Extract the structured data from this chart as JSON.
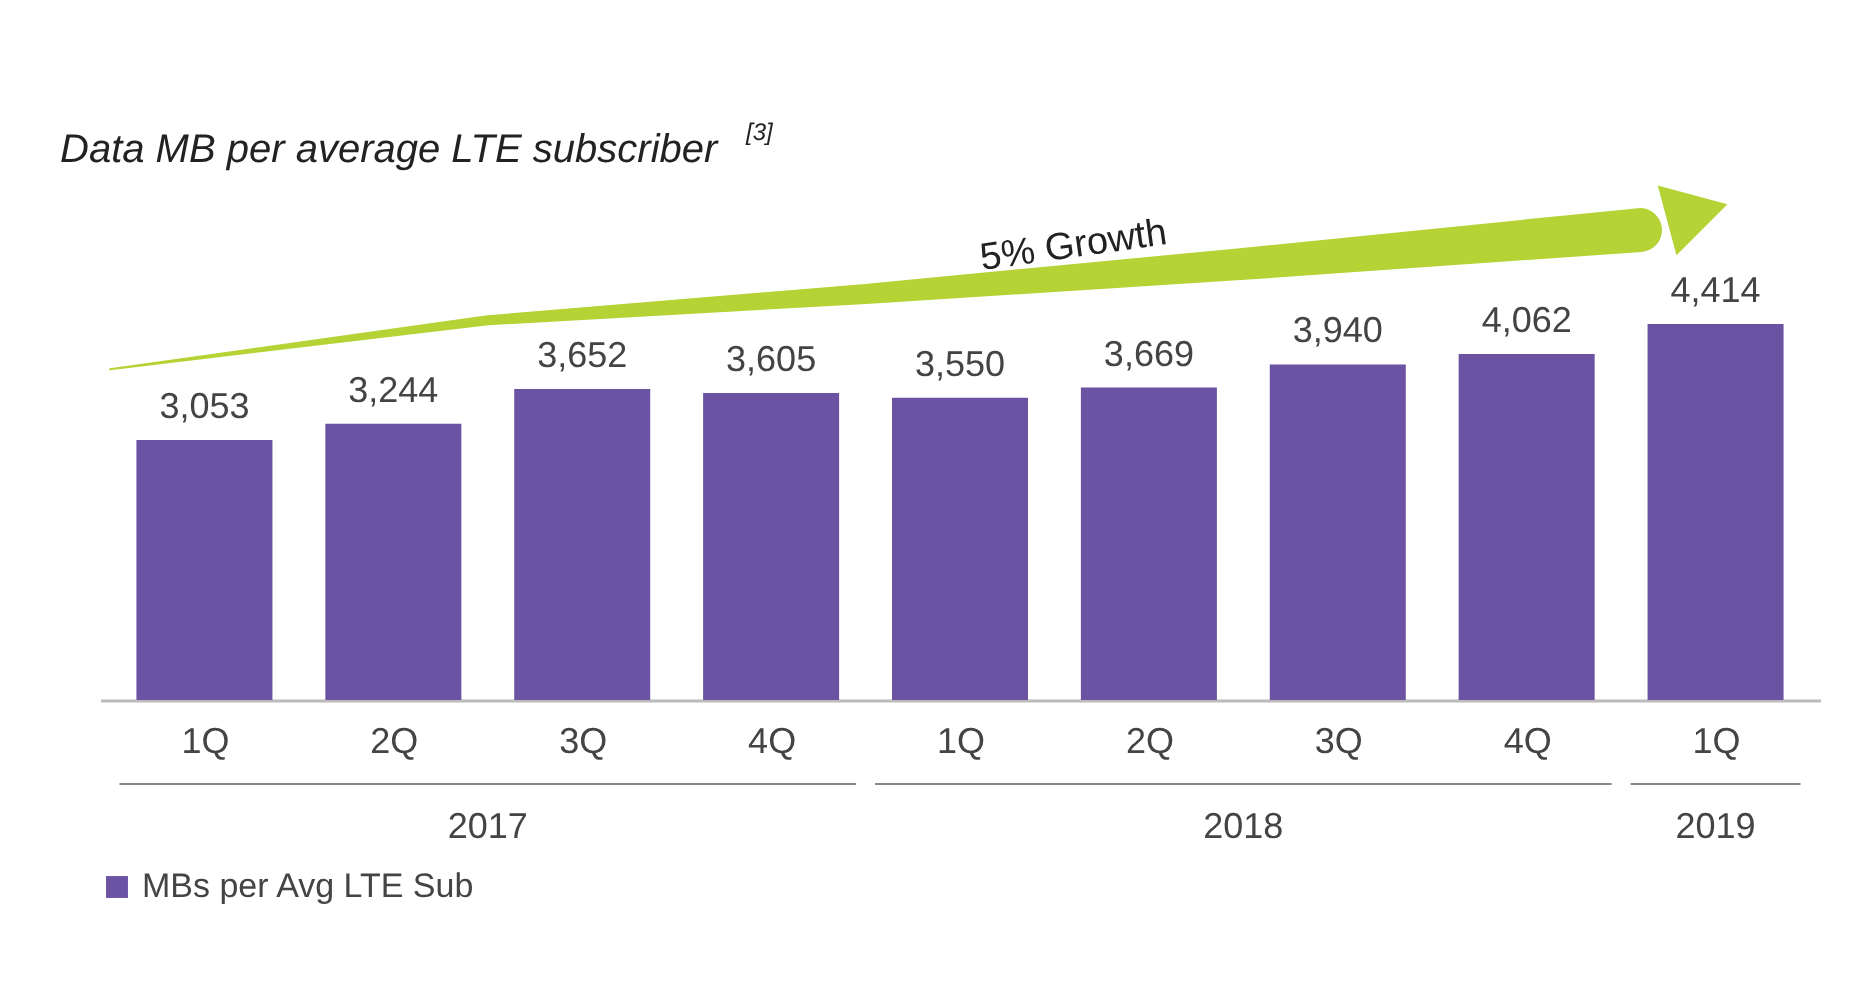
{
  "chart_data": {
    "type": "bar",
    "title": "Data MB per average LTE subscriber$^{[3]}$",
    "categories": [
      "1Q",
      "2Q",
      "3Q",
      "4Q",
      "1Q",
      "2Q",
      "3Q",
      "4Q",
      "1Q"
    ],
    "series": [
      {
        "name": "MBs per Avg LTE Sub",
        "color": "#6b52a3",
        "values": [
          3053,
          3244,
          3652,
          3605,
          3550,
          3669,
          3940,
          4062,
          4414
        ],
        "value_labels": [
          "3,053",
          "3,244",
          "3,652",
          "3,605",
          "3,550",
          "3,669",
          "3,940",
          "4,062",
          "4,414"
        ]
      }
    ],
    "legend": "bottom",
    "annotations": [
      "5% Growth",
      "2017",
      "2018",
      "2019"
    ]
  }
}
